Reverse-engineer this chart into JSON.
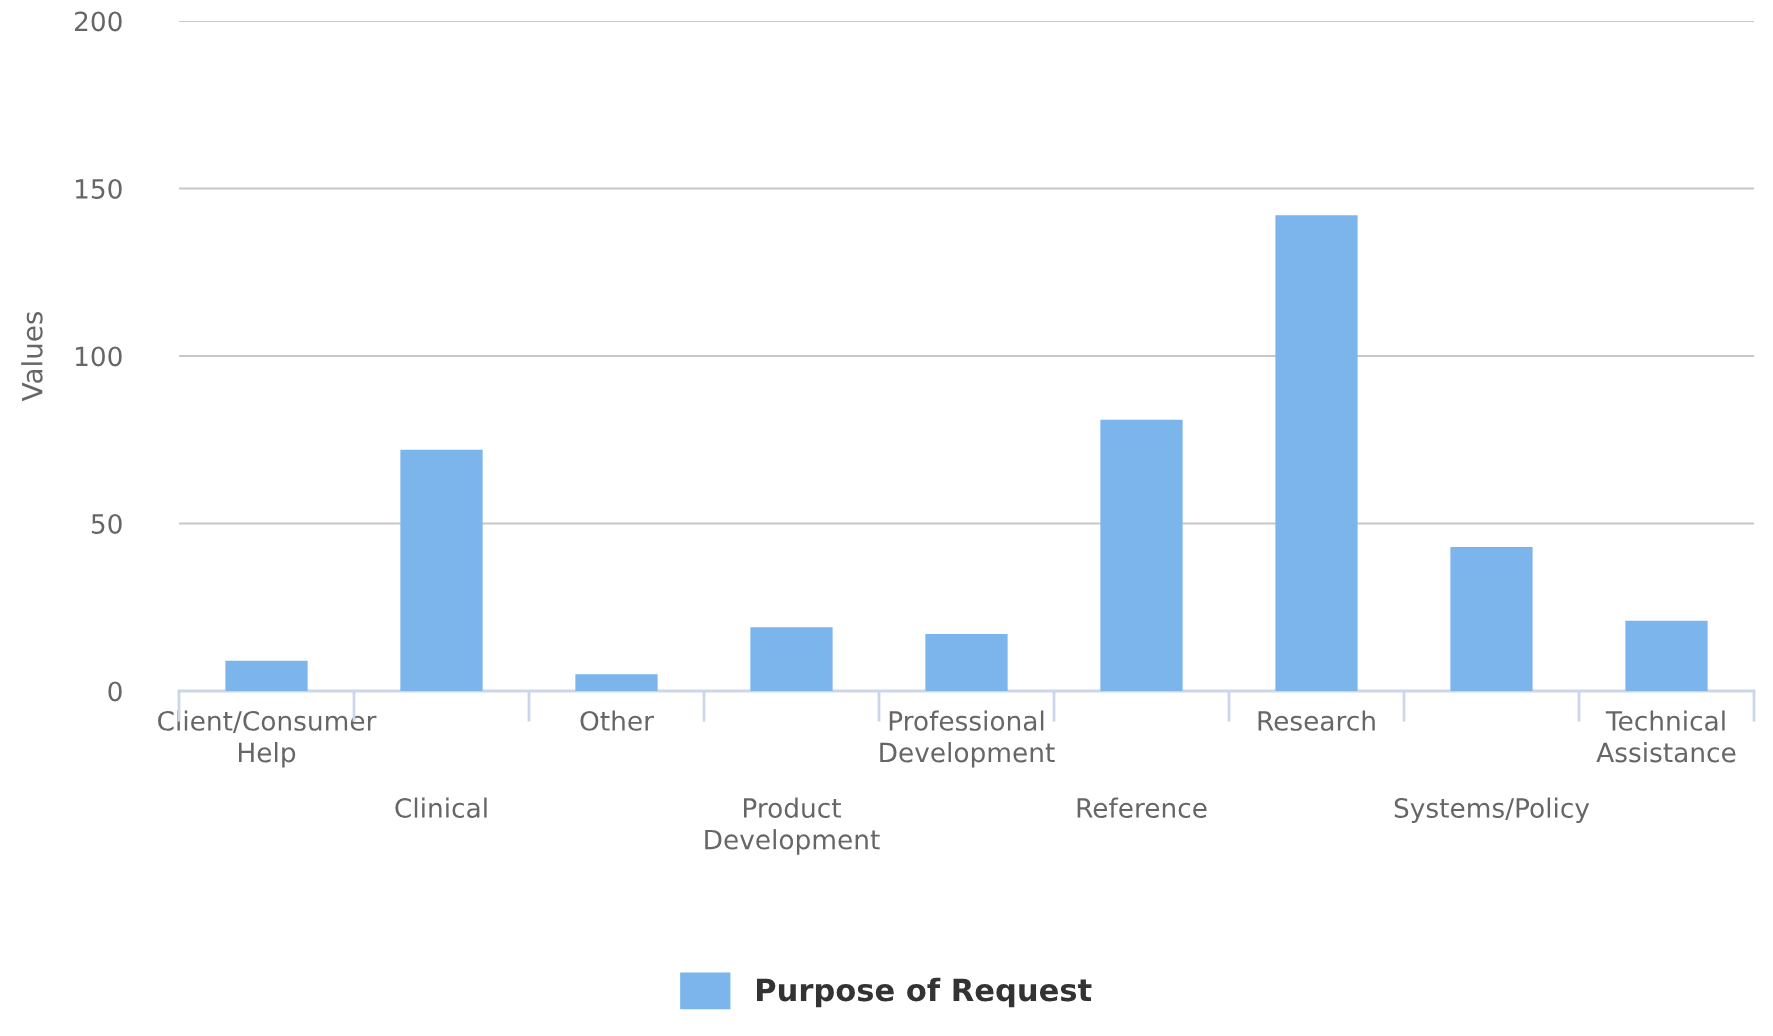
{
  "chart_data": {
    "type": "bar",
    "ylabel": "Values",
    "categories": [
      "Client/Consumer Help",
      "Clinical",
      "Other",
      "Product Development",
      "Professional Development",
      "Reference",
      "Research",
      "Systems/Policy",
      "Technical Assistance"
    ],
    "series": [
      {
        "name": "Purpose of Request",
        "color": "#7cb5ec",
        "values": [
          9,
          72,
          5,
          19,
          17,
          81,
          142,
          43,
          21
        ]
      }
    ],
    "ylim": [
      0,
      200
    ],
    "yticks": [
      0,
      50,
      100,
      150,
      200
    ],
    "grid": "y",
    "legend": "bottom"
  }
}
